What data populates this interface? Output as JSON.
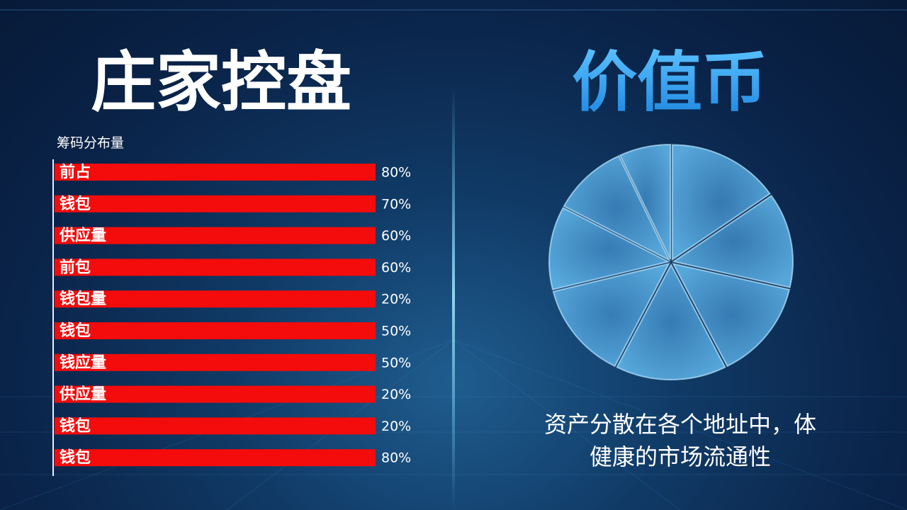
{
  "left": {
    "title": "庄家控盘",
    "subtitle": "筹码分布量",
    "rows": [
      {
        "label": "前占",
        "value": "80%"
      },
      {
        "label": "钱包",
        "value": "70%"
      },
      {
        "label": "供应量",
        "value": "60%"
      },
      {
        "label": "前包",
        "value": "60%"
      },
      {
        "label": "钱包量",
        "value": "20%"
      },
      {
        "label": "钱包",
        "value": "50%"
      },
      {
        "label": "钱应量",
        "value": "50%"
      },
      {
        "label": "供应量",
        "value": "20%"
      },
      {
        "label": "钱包",
        "value": "20%"
      },
      {
        "label": "钱包",
        "value": "80%"
      }
    ]
  },
  "right": {
    "title": "价值币",
    "caption": [
      "资产分散在各个地址中，体",
      "健康的市场流通性"
    ]
  }
}
